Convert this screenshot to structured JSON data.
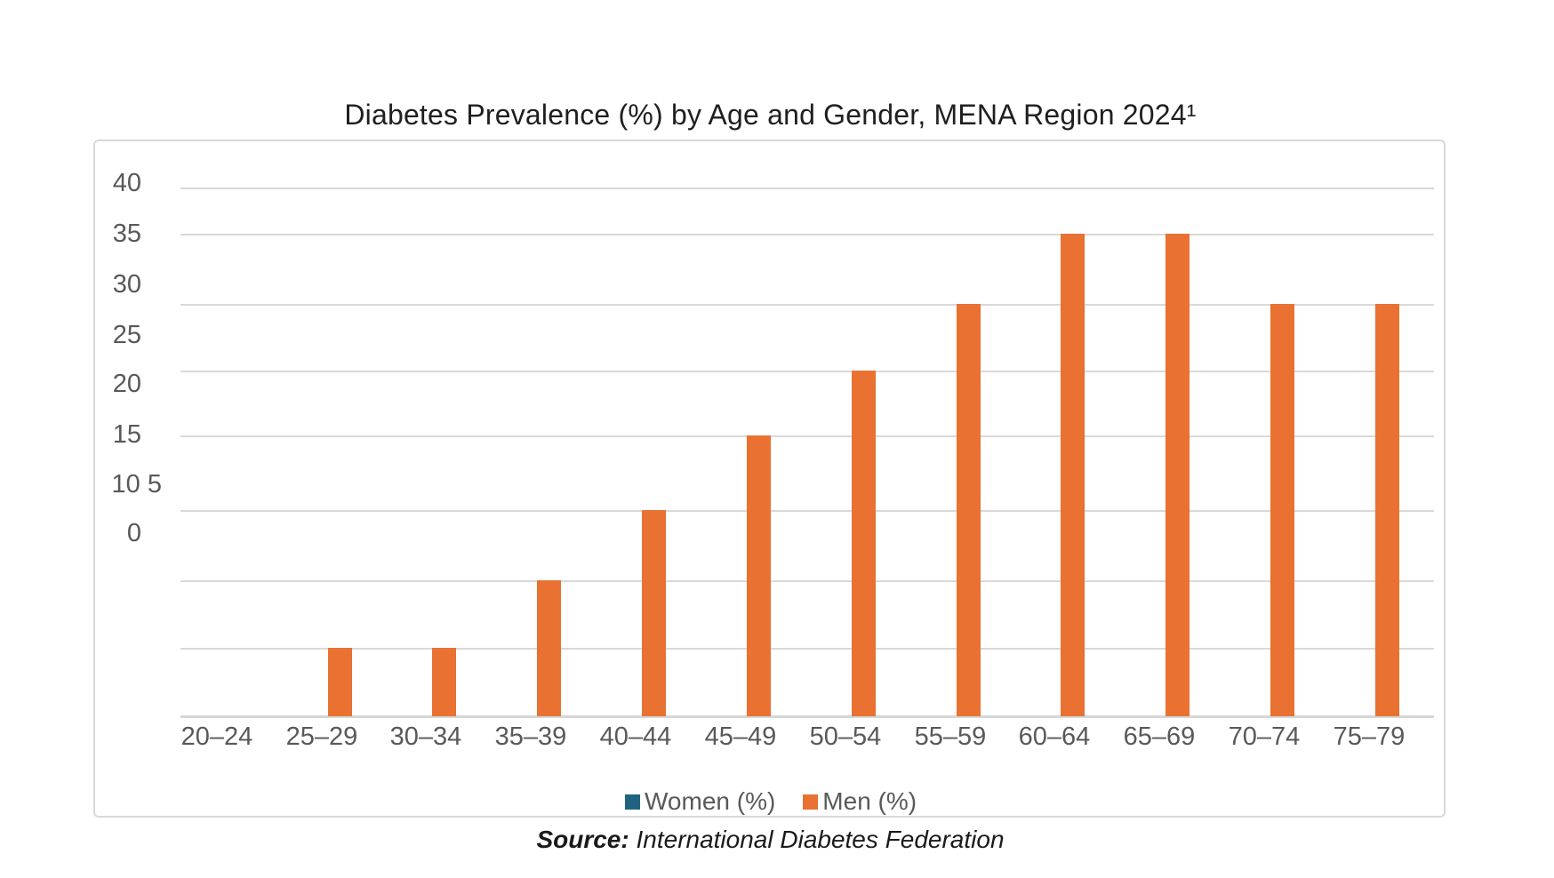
{
  "chart_data": {
    "type": "bar",
    "title": "Diabetes Prevalence (%) by Age and Gender, MENA Region 2024¹",
    "categories": [
      "20–24",
      "25–29",
      "30–34",
      "35–39",
      "40–44",
      "45–49",
      "50–54",
      "55–59",
      "60–64",
      "65–69",
      "70–74",
      "75–79"
    ],
    "series": [
      {
        "name": "Women (%)",
        "color": "#206380",
        "values": [
          0,
          0,
          0,
          0,
          0,
          0,
          0,
          0,
          0,
          0,
          0,
          0
        ]
      },
      {
        "name": "Men (%)",
        "color": "#E97132",
        "values": [
          0,
          5,
          5,
          10,
          15,
          20,
          25,
          30,
          35,
          35,
          30,
          30
        ]
      }
    ],
    "ylim": [
      0,
      40
    ],
    "y_tick_step": 5,
    "displayed_y_tick_labels": [
      "40",
      "35",
      "30",
      "25",
      "20",
      "15",
      "10 5",
      "0"
    ],
    "grid": "horizontal",
    "legend_position": "bottom"
  },
  "source": {
    "label": "Source:",
    "text": "International Diabetes Federation"
  }
}
